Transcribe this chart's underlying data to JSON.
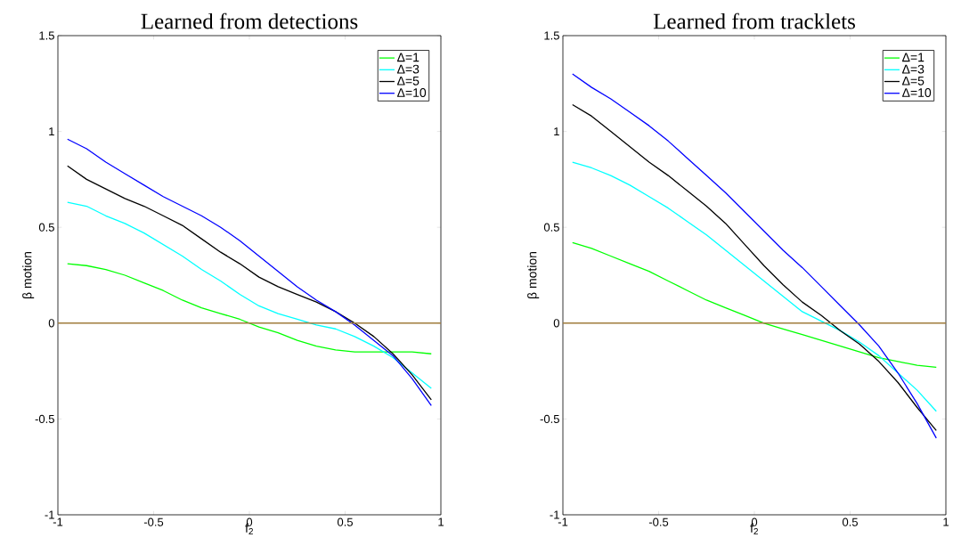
{
  "chart_data": [
    {
      "type": "line",
      "title": "Learned from detections",
      "xlabel": "f$_{2}$",
      "ylabel": "β motion",
      "x": [
        -0.95,
        -0.85,
        -0.75,
        -0.65,
        -0.55,
        -0.45,
        -0.35,
        -0.25,
        -0.15,
        -0.05,
        0.05,
        0.15,
        0.25,
        0.35,
        0.45,
        0.55,
        0.65,
        0.75,
        0.85,
        0.95
      ],
      "series": [
        {
          "name": "Δ=1",
          "color": "#00ff00",
          "values": [
            0.31,
            0.3,
            0.28,
            0.25,
            0.21,
            0.17,
            0.12,
            0.08,
            0.05,
            0.02,
            -0.02,
            -0.05,
            -0.09,
            -0.12,
            -0.14,
            -0.15,
            -0.15,
            -0.15,
            -0.15,
            -0.16
          ]
        },
        {
          "name": "Δ=3",
          "color": "#00ffff",
          "values": [
            0.63,
            0.61,
            0.56,
            0.52,
            0.47,
            0.41,
            0.35,
            0.28,
            0.22,
            0.15,
            0.09,
            0.05,
            0.02,
            -0.01,
            -0.03,
            -0.07,
            -0.12,
            -0.18,
            -0.26,
            -0.34
          ]
        },
        {
          "name": "Δ=5",
          "color": "#000000",
          "values": [
            0.82,
            0.75,
            0.7,
            0.65,
            0.61,
            0.56,
            0.51,
            0.44,
            0.37,
            0.31,
            0.24,
            0.19,
            0.15,
            0.11,
            0.06,
            0.0,
            -0.07,
            -0.16,
            -0.27,
            -0.4
          ]
        },
        {
          "name": "Δ=10",
          "color": "#0000ff",
          "values": [
            0.96,
            0.91,
            0.84,
            0.78,
            0.72,
            0.66,
            0.61,
            0.56,
            0.5,
            0.43,
            0.35,
            0.27,
            0.19,
            0.12,
            0.06,
            -0.01,
            -0.09,
            -0.17,
            -0.29,
            -0.43
          ]
        }
      ],
      "ref_lines": [
        {
          "axis": "y",
          "value": 0,
          "color": "#a07c3c"
        }
      ],
      "xlim": [
        -1,
        1
      ],
      "ylim": [
        -1,
        1.5
      ],
      "xticks": [
        -1,
        -0.5,
        0,
        0.5,
        1
      ],
      "yticks": [
        -1,
        -0.5,
        0,
        0.5,
        1,
        1.5
      ],
      "legend": "top right",
      "grid": false,
      "marker": "none",
      "line_style": "solid"
    },
    {
      "type": "line",
      "title": "Learned from tracklets",
      "xlabel": "f$_{2}$",
      "ylabel": "β motion",
      "x": [
        -0.95,
        -0.85,
        -0.75,
        -0.65,
        -0.55,
        -0.45,
        -0.35,
        -0.25,
        -0.15,
        -0.05,
        0.05,
        0.15,
        0.25,
        0.35,
        0.45,
        0.55,
        0.65,
        0.75,
        0.85,
        0.95
      ],
      "series": [
        {
          "name": "Δ=1",
          "color": "#00ff00",
          "values": [
            0.42,
            0.39,
            0.35,
            0.31,
            0.27,
            0.22,
            0.17,
            0.12,
            0.08,
            0.04,
            0.0,
            -0.03,
            -0.06,
            -0.09,
            -0.12,
            -0.15,
            -0.18,
            -0.2,
            -0.22,
            -0.23
          ]
        },
        {
          "name": "Δ=3",
          "color": "#00ffff",
          "values": [
            0.84,
            0.81,
            0.77,
            0.72,
            0.66,
            0.6,
            0.53,
            0.46,
            0.38,
            0.3,
            0.22,
            0.14,
            0.06,
            0.01,
            -0.04,
            -0.1,
            -0.17,
            -0.26,
            -0.35,
            -0.46
          ]
        },
        {
          "name": "Δ=5",
          "color": "#000000",
          "values": [
            1.14,
            1.08,
            1.0,
            0.92,
            0.84,
            0.77,
            0.69,
            0.61,
            0.52,
            0.41,
            0.3,
            0.2,
            0.11,
            0.04,
            -0.04,
            -0.11,
            -0.2,
            -0.31,
            -0.44,
            -0.56
          ]
        },
        {
          "name": "Δ=10",
          "color": "#0000ff",
          "values": [
            1.3,
            1.23,
            1.17,
            1.1,
            1.03,
            0.95,
            0.86,
            0.77,
            0.68,
            0.58,
            0.48,
            0.38,
            0.29,
            0.19,
            0.09,
            -0.01,
            -0.12,
            -0.26,
            -0.42,
            -0.6
          ]
        }
      ],
      "ref_lines": [
        {
          "axis": "y",
          "value": 0,
          "color": "#a07c3c"
        }
      ],
      "xlim": [
        -1,
        1
      ],
      "ylim": [
        -1,
        1.5
      ],
      "xticks": [
        -1,
        -0.5,
        0,
        0.5,
        1
      ],
      "yticks": [
        -1,
        -0.5,
        0,
        0.5,
        1,
        1.5
      ],
      "legend": "top right",
      "grid": false,
      "marker": "none",
      "line_style": "solid"
    }
  ]
}
